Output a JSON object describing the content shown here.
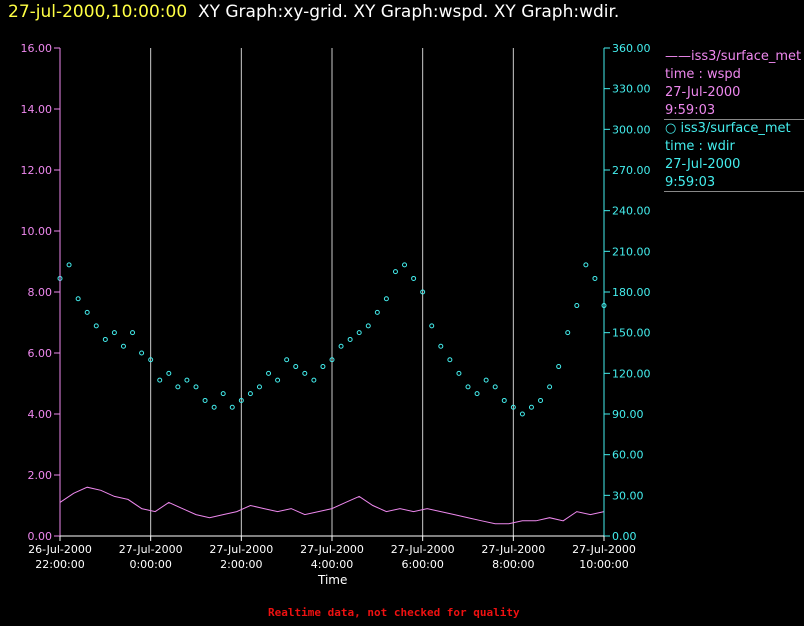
{
  "header": {
    "timestamp": "27-jul-2000,10:00:00",
    "graphs": "XY Graph:xy-grid.  XY Graph:wspd.  XY Graph:wdir."
  },
  "legend": {
    "wspd": {
      "line1": "——iss3/surface_met",
      "line2": "time : wspd",
      "line3": "27-Jul-2000",
      "line4": "9:59:03"
    },
    "wdir": {
      "line1": "○ iss3/surface_met",
      "line2": "time : wdir",
      "line3": "27-Jul-2000",
      "line4": "9:59:03"
    }
  },
  "footer": "Realtime data, not checked for quality",
  "colors": {
    "wspd": "#ee88ee",
    "wdir": "#44eeee",
    "grid": "#cccccc",
    "timestamp": "#ffff44",
    "footer": "#ee1111"
  },
  "chart_data": {
    "type": "line+scatter",
    "xlabel": "Time",
    "x_ticks": [
      {
        "hour": 22,
        "line1": "26-Jul-2000",
        "line2": "22:00:00"
      },
      {
        "hour": 24,
        "line1": "27-Jul-2000",
        "line2": "0:00:00"
      },
      {
        "hour": 26,
        "line1": "27-Jul-2000",
        "line2": "2:00:00"
      },
      {
        "hour": 28,
        "line1": "27-Jul-2000",
        "line2": "4:00:00"
      },
      {
        "hour": 30,
        "line1": "27-Jul-2000",
        "line2": "6:00:00"
      },
      {
        "hour": 32,
        "line1": "27-Jul-2000",
        "line2": "8:00:00"
      },
      {
        "hour": 34,
        "line1": "27-Jul-2000",
        "line2": "10:00:00"
      }
    ],
    "xlim_hours_since_2000_07_26": [
      22,
      34
    ],
    "y_left": {
      "ylim": [
        0,
        16
      ],
      "ticks": [
        "0.00",
        "2.00",
        "4.00",
        "6.00",
        "8.00",
        "10.00",
        "12.00",
        "14.00",
        "16.00"
      ]
    },
    "y_right": {
      "ylim": [
        0,
        360
      ],
      "ticks": [
        "0.00",
        "30.00",
        "60.00",
        "90.00",
        "120.00",
        "150.00",
        "180.00",
        "210.00",
        "240.00",
        "270.00",
        "300.00",
        "330.00",
        "360.00"
      ]
    },
    "grid": "vertical lines at 0:00, 2:00, 4:00, 6:00, 8:00 and 10:00",
    "series": [
      {
        "name": "iss3/surface_met time : wspd",
        "style": "line",
        "axis": "left",
        "x_hours": [
          22.0,
          22.3,
          22.6,
          22.9,
          23.2,
          23.5,
          23.8,
          24.1,
          24.4,
          24.7,
          25.0,
          25.3,
          25.6,
          25.9,
          26.2,
          26.5,
          26.8,
          27.1,
          27.4,
          27.7,
          28.0,
          28.3,
          28.6,
          28.9,
          29.2,
          29.5,
          29.8,
          30.1,
          30.4,
          30.7,
          31.0,
          31.3,
          31.6,
          31.9,
          32.2,
          32.5,
          32.8,
          33.1,
          33.4,
          33.7,
          34.0
        ],
        "values": [
          1.1,
          1.4,
          1.6,
          1.5,
          1.3,
          1.2,
          0.9,
          0.8,
          1.1,
          0.9,
          0.7,
          0.6,
          0.7,
          0.8,
          1.0,
          0.9,
          0.8,
          0.9,
          0.7,
          0.8,
          0.9,
          1.1,
          1.3,
          1.0,
          0.8,
          0.9,
          0.8,
          0.9,
          0.8,
          0.7,
          0.6,
          0.5,
          0.4,
          0.4,
          0.5,
          0.5,
          0.6,
          0.5,
          0.8,
          0.7,
          0.8
        ]
      },
      {
        "name": "iss3/surface_met time : wdir",
        "style": "markers",
        "axis": "right",
        "x_hours": [
          22.0,
          22.2,
          22.4,
          22.6,
          22.8,
          23.0,
          23.2,
          23.4,
          23.6,
          23.8,
          24.0,
          24.2,
          24.4,
          24.6,
          24.8,
          25.0,
          25.2,
          25.4,
          25.6,
          25.8,
          26.0,
          26.2,
          26.4,
          26.6,
          26.8,
          27.0,
          27.2,
          27.4,
          27.6,
          27.8,
          28.0,
          28.2,
          28.4,
          28.6,
          28.8,
          29.0,
          29.2,
          29.4,
          29.6,
          29.8,
          30.0,
          30.2,
          30.4,
          30.6,
          30.8,
          31.0,
          31.2,
          31.4,
          31.6,
          31.8,
          32.0,
          32.2,
          32.4,
          32.6,
          32.8,
          33.0,
          33.2,
          33.4,
          33.6,
          33.8,
          34.0
        ],
        "values": [
          190,
          200,
          175,
          165,
          155,
          145,
          150,
          140,
          150,
          135,
          130,
          115,
          120,
          110,
          115,
          110,
          100,
          95,
          105,
          95,
          100,
          105,
          110,
          120,
          115,
          130,
          125,
          120,
          115,
          125,
          130,
          140,
          145,
          150,
          155,
          165,
          175,
          195,
          200,
          190,
          180,
          155,
          140,
          130,
          120,
          110,
          105,
          115,
          110,
          100,
          95,
          90,
          95,
          100,
          110,
          125,
          150,
          170,
          200,
          190,
          170
        ]
      }
    ]
  }
}
